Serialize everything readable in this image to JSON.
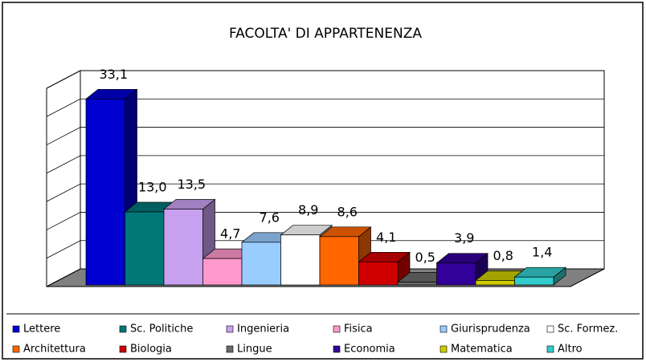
{
  "chart_data": {
    "type": "bar3d",
    "title": "FACOLTA' DI APPARTENENZA",
    "categories": [
      "Lettere",
      "Sc. Politiche",
      "Ingenieria",
      "Fisica",
      "Giurisprudenza",
      "Sc. Formez.",
      "Architettura",
      "Biologia",
      "Lingue",
      "Economia",
      "Matematica",
      "Altro"
    ],
    "values": [
      33.1,
      13.0,
      13.5,
      4.7,
      7.6,
      8.9,
      8.6,
      4.1,
      0.5,
      3.9,
      0.8,
      1.4
    ],
    "value_labels": [
      "33,1",
      "13,0",
      "13,5",
      "4,7",
      "7,6",
      "8,9",
      "8,6",
      "4,1",
      "0,5",
      "3,9",
      "0,8",
      "1,4"
    ],
    "colors": [
      "#0000d0",
      "#007878",
      "#c8a0f0",
      "#ff99cc",
      "#99ccff",
      "#ffffff",
      "#ff6600",
      "#d00000",
      "#6a6a6a",
      "#330099",
      "#cccc00",
      "#33cccc"
    ],
    "ylim": [
      0,
      35
    ],
    "yticks": [
      0,
      5,
      10,
      15,
      20,
      25,
      30,
      35
    ],
    "grid": true
  }
}
